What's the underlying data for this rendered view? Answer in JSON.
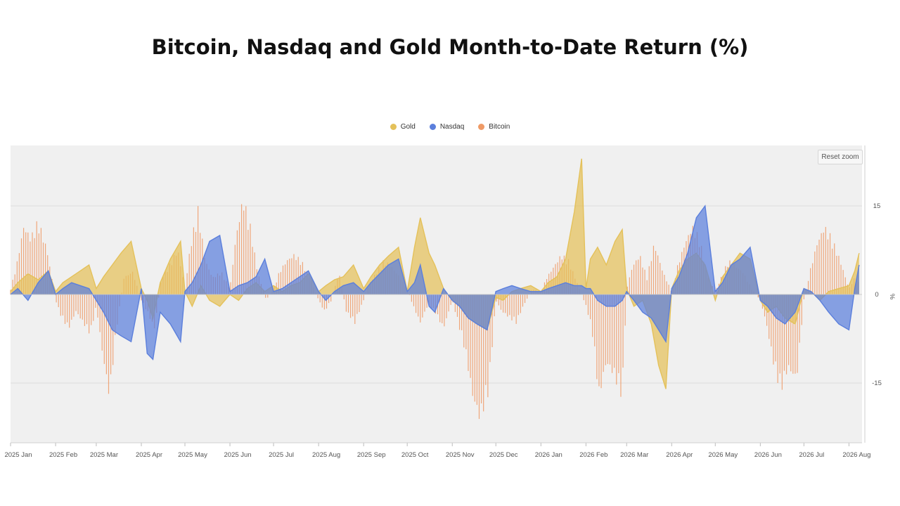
{
  "title": "Bitcoin, Nasdaq and Gold Month-to-Date Return (%)",
  "reset_zoom_label": "Reset zoom",
  "watermark": "",
  "colors": {
    "gold": "#e4c15a",
    "nasdaq": "#5b7fdc",
    "bitcoin": "#ef9a66",
    "plot_bg": "#f0f0f0",
    "grid": "#dcdcdc"
  },
  "chart_data": {
    "type": "area",
    "title": "Bitcoin, Nasdaq and Gold Month-to-Date Return (%)",
    "ylabel": "%",
    "ylim": [
      -25,
      25
    ],
    "y_ticks": [
      15,
      0,
      -15
    ],
    "y_tick_labels": [
      "15",
      "0",
      "-15"
    ],
    "x_start": "2025-01-01",
    "x_end": "2026-08-10",
    "x_tick_labels": [
      "2025 Jan",
      "2025 Feb",
      "2025 Mar",
      "2025 Apr",
      "2025 May",
      "2025 Jun",
      "2025 Jul",
      "2025 Aug",
      "2025 Sep",
      "2025 Oct",
      "2025 Nov",
      "2025 Dec",
      "2026 Jan",
      "2026 Feb",
      "2026 Mar",
      "2026 Apr",
      "2026 May",
      "2026 Jun",
      "2026 Jul",
      "2026 Aug"
    ],
    "legend": [
      {
        "name": "Gold",
        "color": "#e4c15a"
      },
      {
        "name": "Nasdaq",
        "color": "#5b7fdc"
      },
      {
        "name": "Bitcoin",
        "color": "#ef9a66"
      }
    ],
    "legend_position": "top-center",
    "series": [
      {
        "name": "Gold",
        "style": "area",
        "x": [
          "2025-01-01",
          "2025-01-06",
          "2025-01-13",
          "2025-01-20",
          "2025-01-27",
          "2025-02-01",
          "2025-02-06",
          "2025-02-12",
          "2025-02-18",
          "2025-02-24",
          "2025-03-01",
          "2025-03-06",
          "2025-03-12",
          "2025-03-18",
          "2025-03-25",
          "2025-04-01",
          "2025-04-05",
          "2025-04-09",
          "2025-04-14",
          "2025-04-21",
          "2025-04-28",
          "2025-05-01",
          "2025-05-06",
          "2025-05-12",
          "2025-05-18",
          "2025-05-25",
          "2025-06-01",
          "2025-06-07",
          "2025-06-13",
          "2025-06-19",
          "2025-06-25",
          "2025-07-01",
          "2025-07-07",
          "2025-07-13",
          "2025-07-19",
          "2025-07-25",
          "2025-08-01",
          "2025-08-06",
          "2025-08-12",
          "2025-08-18",
          "2025-08-25",
          "2025-09-01",
          "2025-09-06",
          "2025-09-12",
          "2025-09-18",
          "2025-09-25",
          "2025-10-01",
          "2025-10-06",
          "2025-10-10",
          "2025-10-16",
          "2025-10-20",
          "2025-10-26",
          "2025-11-01",
          "2025-11-06",
          "2025-11-12",
          "2025-11-18",
          "2025-11-25",
          "2025-12-01",
          "2025-12-06",
          "2025-12-12",
          "2025-12-18",
          "2025-12-25",
          "2026-01-01",
          "2026-01-06",
          "2026-01-12",
          "2026-01-18",
          "2026-01-24",
          "2026-01-29",
          "2026-02-01",
          "2026-02-04",
          "2026-02-09",
          "2026-02-15",
          "2026-02-21",
          "2026-02-26",
          "2026-03-01",
          "2026-03-06",
          "2026-03-12",
          "2026-03-18",
          "2026-03-23",
          "2026-03-28",
          "2026-04-01",
          "2026-04-06",
          "2026-04-12",
          "2026-04-18",
          "2026-04-24",
          "2026-05-01",
          "2026-05-06",
          "2026-05-12",
          "2026-05-18",
          "2026-05-25",
          "2026-06-01",
          "2026-06-06",
          "2026-06-12",
          "2026-06-18",
          "2026-06-25",
          "2026-07-01",
          "2026-07-06",
          "2026-07-12",
          "2026-07-18",
          "2026-07-25",
          "2026-08-01",
          "2026-08-05",
          "2026-08-08"
        ],
        "values": [
          0.5,
          2,
          3.5,
          2.5,
          4,
          0.5,
          2,
          3,
          4,
          5,
          1,
          3,
          5,
          7,
          9,
          1,
          -1,
          -4,
          2,
          6,
          9,
          0.5,
          -2,
          1.5,
          -1,
          -2,
          0,
          -1,
          1,
          2,
          0.5,
          1.5,
          0.5,
          1.5,
          2,
          3.5,
          0.5,
          1.5,
          2.5,
          3,
          5,
          1,
          3,
          5,
          6.5,
          8,
          0.5,
          8,
          13,
          7,
          5,
          1,
          -1,
          -2,
          -4,
          -5,
          -6,
          -0.5,
          -1,
          0.5,
          1,
          1.5,
          0.5,
          2,
          3,
          6,
          14,
          23,
          1,
          6,
          8,
          5,
          9,
          11,
          1,
          -2,
          -1,
          -5,
          -12,
          -16,
          1,
          4,
          6,
          7,
          5,
          -1,
          3,
          5,
          7,
          6,
          -1,
          -3,
          -2,
          -4,
          -5,
          1,
          0.5,
          -1,
          0.5,
          1,
          1.5,
          4,
          7
        ]
      },
      {
        "name": "Nasdaq",
        "style": "area",
        "x": [
          "2025-01-01",
          "2025-01-06",
          "2025-01-13",
          "2025-01-20",
          "2025-01-27",
          "2025-02-01",
          "2025-02-06",
          "2025-02-12",
          "2025-02-18",
          "2025-02-24",
          "2025-03-01",
          "2025-03-06",
          "2025-03-12",
          "2025-03-18",
          "2025-03-25",
          "2025-04-01",
          "2025-04-05",
          "2025-04-09",
          "2025-04-14",
          "2025-04-21",
          "2025-04-28",
          "2025-05-01",
          "2025-05-06",
          "2025-05-12",
          "2025-05-18",
          "2025-05-25",
          "2025-06-01",
          "2025-06-07",
          "2025-06-13",
          "2025-06-19",
          "2025-06-25",
          "2025-07-01",
          "2025-07-07",
          "2025-07-13",
          "2025-07-19",
          "2025-07-25",
          "2025-08-01",
          "2025-08-06",
          "2025-08-12",
          "2025-08-18",
          "2025-08-25",
          "2025-09-01",
          "2025-09-06",
          "2025-09-12",
          "2025-09-18",
          "2025-09-25",
          "2025-10-01",
          "2025-10-06",
          "2025-10-10",
          "2025-10-16",
          "2025-10-20",
          "2025-10-26",
          "2025-11-01",
          "2025-11-06",
          "2025-11-12",
          "2025-11-18",
          "2025-11-25",
          "2025-12-01",
          "2025-12-06",
          "2025-12-12",
          "2025-12-18",
          "2025-12-25",
          "2026-01-01",
          "2026-01-06",
          "2026-01-12",
          "2026-01-18",
          "2026-01-24",
          "2026-01-29",
          "2026-02-01",
          "2026-02-04",
          "2026-02-09",
          "2026-02-15",
          "2026-02-21",
          "2026-02-26",
          "2026-03-01",
          "2026-03-06",
          "2026-03-12",
          "2026-03-18",
          "2026-03-23",
          "2026-03-28",
          "2026-04-01",
          "2026-04-06",
          "2026-04-12",
          "2026-04-18",
          "2026-04-24",
          "2026-05-01",
          "2026-05-06",
          "2026-05-12",
          "2026-05-18",
          "2026-05-25",
          "2026-06-01",
          "2026-06-06",
          "2026-06-12",
          "2026-06-18",
          "2026-06-25",
          "2026-07-01",
          "2026-07-06",
          "2026-07-12",
          "2026-07-18",
          "2026-07-25",
          "2026-08-01",
          "2026-08-05",
          "2026-08-08"
        ],
        "values": [
          0,
          1,
          -1,
          2,
          4,
          0,
          1,
          2,
          1.5,
          1,
          -1,
          -3,
          -6,
          -7,
          -8,
          1,
          -10,
          -11,
          -3,
          -5,
          -8,
          0.5,
          2,
          5,
          9,
          10,
          0.5,
          1.5,
          2,
          3,
          6,
          0.5,
          1,
          2,
          3,
          4,
          0.5,
          -1,
          0.5,
          1.5,
          2,
          0.5,
          2,
          3.5,
          5,
          6,
          0.5,
          2,
          5,
          -2,
          -3,
          1,
          -1,
          -2,
          -4,
          -5,
          -6,
          0.5,
          1,
          1.5,
          1,
          0.5,
          0.5,
          1,
          1.5,
          2,
          1.5,
          1.5,
          1,
          1,
          -1,
          -2,
          -2,
          -1,
          0.5,
          -1,
          -3,
          -4,
          -6,
          -8,
          1,
          3,
          7,
          13,
          15,
          0.5,
          2,
          5,
          6,
          8,
          -1,
          -2,
          -4,
          -5,
          -3,
          1,
          0.5,
          -1,
          -3,
          -5,
          -6,
          1,
          5
        ]
      },
      {
        "name": "Bitcoin",
        "style": "column",
        "x": [
          "2025-01-01",
          "2025-01-05",
          "2025-01-10",
          "2025-01-15",
          "2025-01-20",
          "2025-01-26",
          "2025-02-01",
          "2025-02-05",
          "2025-02-10",
          "2025-02-15",
          "2025-02-20",
          "2025-02-25",
          "2025-03-01",
          "2025-03-05",
          "2025-03-10",
          "2025-03-15",
          "2025-03-20",
          "2025-03-26",
          "2025-04-01",
          "2025-04-05",
          "2025-04-10",
          "2025-04-15",
          "2025-04-20",
          "2025-04-26",
          "2025-05-01",
          "2025-05-05",
          "2025-05-10",
          "2025-05-15",
          "2025-05-20",
          "2025-05-26",
          "2025-06-01",
          "2025-06-05",
          "2025-06-10",
          "2025-06-15",
          "2025-06-20",
          "2025-06-26",
          "2025-07-01",
          "2025-07-05",
          "2025-07-10",
          "2025-07-15",
          "2025-07-20",
          "2025-07-26",
          "2025-08-01",
          "2025-08-05",
          "2025-08-10",
          "2025-08-15",
          "2025-08-20",
          "2025-08-26",
          "2025-09-01",
          "2025-09-05",
          "2025-09-10",
          "2025-09-15",
          "2025-09-20",
          "2025-09-26",
          "2025-10-01",
          "2025-10-05",
          "2025-10-10",
          "2025-10-15",
          "2025-10-20",
          "2025-10-26",
          "2025-11-01",
          "2025-11-05",
          "2025-11-10",
          "2025-11-15",
          "2025-11-20",
          "2025-11-26",
          "2025-12-01",
          "2025-12-05",
          "2025-12-10",
          "2025-12-15",
          "2025-12-20",
          "2025-12-26",
          "2026-01-01",
          "2026-01-05",
          "2026-01-10",
          "2026-01-15",
          "2026-01-20",
          "2026-01-26",
          "2026-02-01",
          "2026-02-05",
          "2026-02-10",
          "2026-02-15",
          "2026-02-20",
          "2026-02-26",
          "2026-03-01",
          "2026-03-05",
          "2026-03-10",
          "2026-03-15",
          "2026-03-20",
          "2026-03-26",
          "2026-04-01",
          "2026-04-05",
          "2026-04-10",
          "2026-04-15",
          "2026-04-20",
          "2026-04-26",
          "2026-05-01",
          "2026-05-05",
          "2026-05-10",
          "2026-05-15",
          "2026-05-20",
          "2026-05-26",
          "2026-06-01",
          "2026-06-05",
          "2026-06-10",
          "2026-06-15",
          "2026-06-20",
          "2026-06-26",
          "2026-07-01",
          "2026-07-05",
          "2026-07-10",
          "2026-07-15",
          "2026-07-20",
          "2026-07-26",
          "2026-08-01",
          "2026-08-05",
          "2026-08-08"
        ],
        "values": [
          1,
          5,
          12,
          10,
          13,
          8,
          -1,
          -4,
          -6,
          -3,
          -5,
          -7,
          -2,
          -10,
          -18,
          -6,
          3,
          4,
          -1,
          -3,
          -6,
          3,
          5,
          8,
          1,
          9,
          15,
          6,
          3,
          4,
          1,
          10,
          17,
          12,
          4,
          -1,
          1,
          4,
          6,
          7,
          6,
          3,
          -1,
          -3,
          -1,
          4,
          -3,
          -5,
          -1,
          2,
          4,
          6,
          5,
          3,
          1,
          -2,
          -5,
          -2,
          -3,
          -6,
          -1,
          -5,
          -10,
          -18,
          -22,
          -17,
          -1,
          -3,
          -4,
          -5,
          -2,
          1,
          0.5,
          3,
          5,
          7,
          6,
          2,
          -2,
          -6,
          -18,
          -12,
          -14,
          -18,
          1,
          5,
          7,
          3,
          9,
          4,
          0.5,
          5,
          9,
          12,
          10,
          3,
          0.5,
          3,
          6,
          5,
          4,
          1,
          -1,
          -5,
          -12,
          -17,
          -13,
          -15,
          -1,
          4,
          9,
          12,
          10,
          6,
          1,
          3,
          2
        ]
      }
    ]
  }
}
